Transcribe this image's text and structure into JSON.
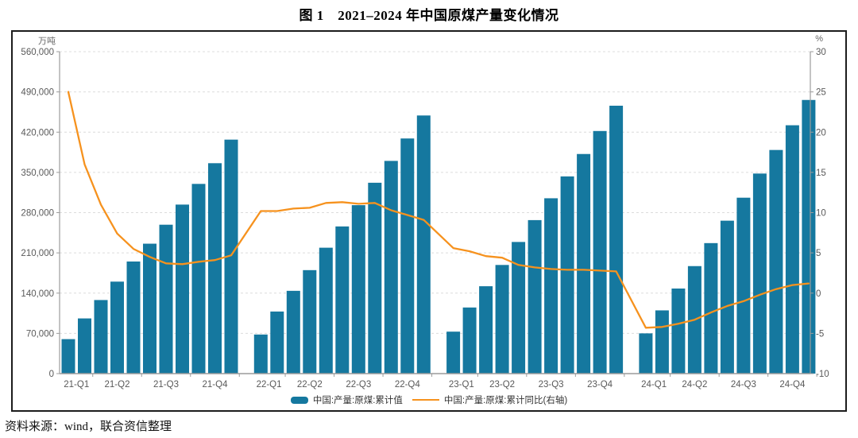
{
  "page": {
    "title": "图 1　2021–2024 年中国原煤产量变化情况",
    "source_note": "资料来源：wind，联合资信整理"
  },
  "colors": {
    "bar": "#15789F",
    "line": "#F6921E",
    "grid": "#DCDCDC",
    "axis": "#9C9C9C",
    "tick_label": "#595959",
    "box_border": "#1C1C1C"
  },
  "chart_data": {
    "type": "bar",
    "subtype": "bar+line combo, monthly cumulative values grouped by year (Feb–Dec, 11 bars per year)",
    "title": "图 1　2021–2024 年中国原煤产量变化情况",
    "left_axis": {
      "unit": "万吨",
      "min": 0,
      "max": 560000,
      "step": 70000,
      "tick_labels": [
        "0",
        "70,000",
        "140,000",
        "210,000",
        "280,000",
        "350,000",
        "420,000",
        "490,000",
        "560,000"
      ]
    },
    "right_axis": {
      "unit": "%",
      "min": -10,
      "max": 30,
      "step": 5,
      "tick_labels": [
        "-10",
        "-5",
        "0",
        "5",
        "10",
        "15",
        "20",
        "25",
        "30"
      ]
    },
    "x_axis": {
      "quarter_labels": [
        "21-Q1",
        "21-Q2",
        "21-Q3",
        "21-Q4",
        "22-Q1",
        "22-Q2",
        "22-Q3",
        "22-Q4",
        "23-Q1",
        "23-Q2",
        "23-Q3",
        "23-Q4",
        "24-Q1",
        "24-Q2",
        "24-Q3",
        "24-Q4"
      ],
      "year_groups": [
        "2021",
        "2022",
        "2023",
        "2024"
      ],
      "bars_per_year": 11
    },
    "grid": "horizontal-dashed",
    "legend_position": "bottom",
    "series": [
      {
        "name": "中国:产量:原煤:累计值",
        "type": "bar",
        "axis": "left",
        "color": "#15789F",
        "values": [
          [
            60000,
            96000,
            128000,
            160000,
            195000,
            226000,
            259000,
            294000,
            330000,
            366000,
            407000
          ],
          [
            68000,
            108000,
            144000,
            180000,
            219000,
            256000,
            293000,
            332000,
            370000,
            409000,
            449000
          ],
          [
            73000,
            115000,
            152000,
            189000,
            229000,
            267000,
            305000,
            343000,
            382000,
            422000,
            466000
          ],
          [
            70000,
            110000,
            148000,
            187000,
            227000,
            266000,
            306000,
            348000,
            389000,
            432000,
            476000
          ]
        ]
      },
      {
        "name": "中国:产量:原煤:累计同比(右轴)",
        "type": "line",
        "axis": "right",
        "color": "#F6921E",
        "values": [
          [
            25.0,
            16.0,
            11.0,
            7.4,
            5.5,
            4.5,
            3.7,
            3.6,
            3.9,
            4.1,
            4.7
          ],
          [
            10.2,
            10.2,
            10.5,
            10.6,
            11.2,
            11.3,
            11.1,
            11.2,
            10.3,
            9.7,
            9.1
          ],
          [
            5.6,
            5.2,
            4.6,
            4.4,
            3.5,
            3.2,
            3.0,
            2.9,
            2.9,
            2.8,
            2.7
          ],
          [
            -4.3,
            -4.2,
            -3.8,
            -3.3,
            -2.4,
            -1.6,
            -1.0,
            -0.2,
            0.5,
            1.0,
            1.2
          ]
        ]
      }
    ]
  }
}
